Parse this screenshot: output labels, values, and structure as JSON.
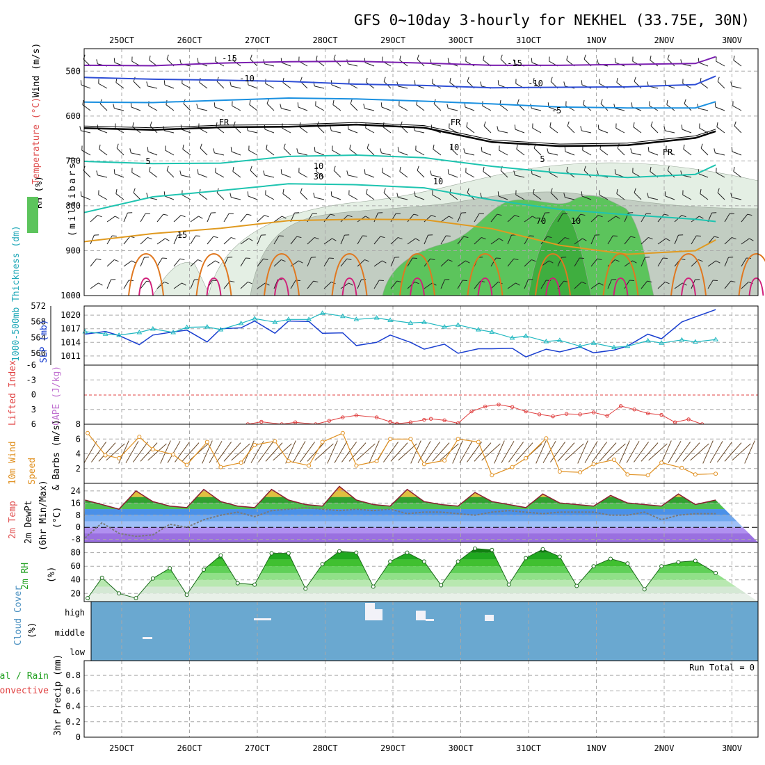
{
  "title": "GFS 0~10day 3-hourly for NEKHEL (33.75E, 30N)",
  "colors": {
    "temp_cold": "#7b1fb0",
    "temp_mid": "#2f4fd6",
    "temp_cool": "#1a90e0",
    "temp_fr": "#000000",
    "temp_warm": "#1ec4b0",
    "temp_hot": "#e09a20",
    "rh_light": "#e4efe4",
    "rh_mid": "#c2cdc2",
    "rh_green": "#5cc45c",
    "slp": "#1a3fd0",
    "thickness": "#20b8c0",
    "lifted": "#e04040",
    "wind10m": "#e09020",
    "dewpt": "#7a7a7a",
    "cloud": "#6aa8d0"
  },
  "chart_data": [
    {
      "type": "heatmap",
      "panel": "upper-air",
      "ylabel_parts": [
        "Wind (m/s)",
        "Temperature (°C)",
        "RH (%)"
      ],
      "ylabel_unit": "(millibars)",
      "y_ticks": [
        "500",
        "600",
        "700",
        "800",
        "900",
        "1000"
      ],
      "ylim": [
        450,
        1000
      ],
      "x_ticks_top": [
        "25OCT",
        "26OCT",
        "27OCT",
        "28OCT",
        "29OCT",
        "30OCT",
        "31OCT",
        "1NOV",
        "2NOV",
        "3NOV"
      ],
      "contour_labels": [
        "-15",
        "-15",
        "-10",
        "-10",
        "-5",
        "FR",
        "FR",
        "FR",
        "5",
        "5",
        "10",
        "15",
        "10",
        "30",
        "10",
        "70",
        "10"
      ],
      "series": [
        {
          "name": "-15",
          "x": [
            0,
            1,
            2,
            3,
            4,
            5,
            6,
            7,
            8,
            9,
            9.3
          ],
          "values": [
            487,
            488,
            482,
            479,
            478,
            482,
            487,
            487,
            485,
            483,
            468
          ]
        },
        {
          "name": "-10",
          "x": [
            0,
            1,
            2,
            3,
            4,
            5,
            6,
            7,
            8,
            9,
            9.3
          ],
          "values": [
            514,
            518,
            520,
            523,
            529,
            532,
            537,
            536,
            535,
            530,
            511
          ]
        },
        {
          "name": "-5",
          "x": [
            0,
            1,
            2,
            3,
            4,
            5,
            6,
            7,
            8,
            9,
            9.3
          ],
          "values": [
            569,
            570,
            565,
            560,
            562,
            567,
            573,
            580,
            582,
            582,
            568
          ]
        },
        {
          "name": "FR",
          "x": [
            0,
            1,
            2,
            3,
            4,
            5,
            6,
            7,
            8,
            9,
            9.3
          ],
          "values": [
            627,
            631,
            625,
            624,
            619,
            626,
            658,
            667,
            665,
            649,
            634
          ]
        },
        {
          "name": "5",
          "x": [
            0,
            1,
            2,
            3,
            4,
            5,
            6,
            7,
            8,
            9,
            9.3
          ],
          "values": [
            701,
            706,
            705,
            690,
            687,
            693,
            712,
            727,
            737,
            730,
            709
          ]
        },
        {
          "name": "10",
          "x": [
            0,
            1,
            2,
            3,
            4,
            5,
            6,
            7,
            8,
            9,
            9.3
          ],
          "values": [
            815,
            780,
            766,
            751,
            753,
            760,
            787,
            808,
            820,
            830,
            835
          ]
        },
        {
          "name": "15",
          "x": [
            0,
            1,
            2,
            3,
            4,
            5,
            6,
            7,
            8,
            9,
            9.3
          ],
          "values": [
            880,
            862,
            850,
            833,
            830,
            831,
            851,
            888,
            908,
            900,
            876
          ]
        }
      ]
    },
    {
      "type": "line",
      "panel": "thickness-slp",
      "ylabel_left": "1000-500mb Thickness (dm)",
      "ylabel_right": "SLP (mb)",
      "y_ticks_left": [
        "572",
        "568",
        "564",
        "560"
      ],
      "y_ticks_right": [
        "1020",
        "1017",
        "1014",
        "1011"
      ],
      "ylim_left": [
        557,
        572
      ],
      "ylim_right": [
        1009,
        1022
      ],
      "series": [
        {
          "name": "SLP (mb)",
          "x": [
            0,
            0.3,
            0.5,
            0.8,
            1.0,
            1.3,
            1.5,
            1.8,
            2.0,
            2.3,
            2.5,
            2.8,
            3.0,
            3.3,
            3.5,
            3.8,
            4.0,
            4.3,
            4.5,
            4.8,
            5.0,
            5.3,
            5.5,
            5.8,
            6.0,
            6.3,
            6.5,
            6.8,
            7.0,
            7.3,
            7.5,
            7.8,
            8.0,
            8.3,
            8.5,
            8.8,
            9.0,
            9.3
          ],
          "values": [
            1015.8,
            1016.4,
            1015.5,
            1013.5,
            1015.6,
            1016.3,
            1016.7,
            1014.1,
            1017.0,
            1017.2,
            1018.7,
            1016.0,
            1018.7,
            1018.6,
            1016.0,
            1016.1,
            1013.3,
            1014.0,
            1015.6,
            1014.0,
            1012.5,
            1013.6,
            1011.6,
            1012.6,
            1012.6,
            1012.7,
            1010.8,
            1012.5,
            1011.9,
            1013.0,
            1011.7,
            1012.3,
            1013.2,
            1015.8,
            1014.8,
            1018.5,
            1019.6,
            1021.2
          ]
        },
        {
          "name": "1000-500mb Thickness (dm)",
          "x": [
            0,
            0.3,
            0.5,
            0.8,
            1.0,
            1.3,
            1.5,
            1.8,
            2.0,
            2.3,
            2.5,
            2.8,
            3.0,
            3.3,
            3.5,
            3.8,
            4.0,
            4.3,
            4.5,
            4.8,
            5.0,
            5.3,
            5.5,
            5.8,
            6.0,
            6.3,
            6.5,
            6.8,
            7.0,
            7.3,
            7.5,
            7.8,
            8.0,
            8.3,
            8.5,
            8.8,
            9.0,
            9.3
          ],
          "values": [
            565.5,
            564.9,
            564.6,
            565.3,
            566.2,
            565.3,
            566.6,
            566.7,
            566.0,
            567.6,
            568.8,
            567.9,
            568.6,
            568.6,
            570.2,
            569.4,
            568.6,
            569.0,
            568.4,
            567.7,
            567.9,
            566.7,
            567.2,
            566.0,
            565.4,
            563.9,
            564.4,
            563.0,
            563.3,
            561.8,
            562.6,
            561.5,
            561.8,
            563.2,
            562.6,
            563.4,
            562.9,
            563.5
          ]
        }
      ]
    },
    {
      "type": "line",
      "panel": "cape-lifted",
      "ylabel_left": "Lifted Index",
      "ylabel_right": "CAPE (J/kg)",
      "y_ticks": [
        "-6",
        "-3",
        "0",
        "3",
        "6"
      ],
      "ylim": [
        -6,
        6
      ],
      "series": [
        {
          "name": "Lifted Index",
          "x": [
            2.4,
            2.6,
            2.9,
            3.1,
            3.4,
            3.6,
            3.8,
            4.0,
            4.3,
            4.5,
            4.6,
            4.8,
            5.0,
            5.1,
            5.3,
            5.5,
            5.7,
            5.9,
            6.1,
            6.3,
            6.5,
            6.7,
            6.9,
            7.1,
            7.3,
            7.5,
            7.7,
            7.9,
            8.1,
            8.3,
            8.5,
            8.7,
            8.9,
            9.1
          ],
          "values": [
            6,
            5.5,
            6,
            5.6,
            6,
            5.3,
            4.6,
            4.2,
            4.6,
            5.5,
            5.9,
            5.6,
            5.1,
            4.9,
            5.2,
            5.8,
            3.4,
            2.4,
            2.0,
            2.5,
            3.4,
            4.0,
            4.4,
            3.9,
            4.0,
            3.6,
            4.3,
            2.3,
            3.0,
            3.8,
            4.1,
            5.6,
            5.0,
            6
          ]
        }
      ]
    },
    {
      "type": "line",
      "panel": "wind10m",
      "ylabel": "10m Wind Speed & Barbs (m/s)",
      "y_ticks": [
        "2",
        "4",
        "6",
        "8"
      ],
      "ylim": [
        0,
        8
      ],
      "series": [
        {
          "name": "10m Wind Speed",
          "x": [
            0,
            0.3,
            0.5,
            0.8,
            1.0,
            1.3,
            1.5,
            1.8,
            2.0,
            2.3,
            2.5,
            2.8,
            3.0,
            3.3,
            3.5,
            3.8,
            4.0,
            4.3,
            4.5,
            4.8,
            5.0,
            5.3,
            5.5,
            5.8,
            6.0,
            6.3,
            6.5,
            6.8,
            7.0,
            7.3,
            7.5,
            7.8,
            8.0,
            8.3,
            8.5,
            8.8,
            9.0,
            9.3
          ],
          "values": [
            6.8,
            3.8,
            3.4,
            6.3,
            4.6,
            3.9,
            2.5,
            5.6,
            2.2,
            2.8,
            5.2,
            5.7,
            3.0,
            2.4,
            5.6,
            6.8,
            2.4,
            3.0,
            6.0,
            6.0,
            2.6,
            3.1,
            6.0,
            5.6,
            1.1,
            2.2,
            3.4,
            6.1,
            1.6,
            1.5,
            2.6,
            3.2,
            1.2,
            1.1,
            2.8,
            2.1,
            1.2,
            1.3
          ]
        }
      ]
    },
    {
      "type": "area",
      "panel": "temp2m",
      "ylabel": "2m Temp 2m DewPt (6hr Min/Max) (°C)",
      "y_ticks": [
        "24",
        "16",
        "8",
        "0",
        "-8"
      ],
      "ylim": [
        -10,
        29
      ],
      "series": [
        {
          "name": "2m Temp",
          "x": [
            0,
            0.25,
            0.5,
            0.75,
            1,
            1.25,
            1.5,
            1.75,
            2,
            2.25,
            2.5,
            2.75,
            3,
            3.25,
            3.5,
            3.75,
            4,
            4.25,
            4.5,
            4.75,
            5,
            5.25,
            5.5,
            5.75,
            6,
            6.25,
            6.5,
            6.75,
            7,
            7.25,
            7.5,
            7.75,
            8,
            8.25,
            8.5,
            8.75,
            9,
            9.3
          ],
          "values": [
            18,
            15,
            12,
            24,
            17,
            14,
            13,
            25,
            17,
            14,
            13,
            25,
            18,
            15,
            14,
            27,
            18,
            15,
            14,
            25,
            17,
            15,
            14,
            23,
            17,
            15,
            13,
            22,
            16,
            15,
            14,
            21,
            16,
            15,
            14,
            22,
            15,
            18
          ]
        },
        {
          "name": "2m DewPt",
          "x": [
            0,
            0.25,
            0.5,
            0.75,
            1,
            1.25,
            1.5,
            1.75,
            2,
            2.25,
            2.5,
            2.75,
            3,
            3.25,
            3.5,
            3.75,
            4,
            4.25,
            4.5,
            4.75,
            5,
            5.25,
            5.5,
            5.75,
            6,
            6.25,
            6.5,
            6.75,
            7,
            7.25,
            7.5,
            7.75,
            8,
            8.25,
            8.5,
            8.75,
            9,
            9.3
          ],
          "values": [
            -7,
            3,
            -4,
            -6,
            -5,
            2,
            0,
            5,
            8,
            10,
            7,
            11,
            12,
            13,
            12,
            11,
            12,
            11,
            12,
            9,
            10,
            10,
            9,
            8,
            10,
            11,
            10,
            9,
            10,
            10,
            10,
            8,
            8,
            10,
            5,
            8,
            9,
            9
          ]
        }
      ]
    },
    {
      "type": "area",
      "panel": "rh2m",
      "ylabel": "2m RH (%)",
      "y_ticks": [
        "80",
        "60",
        "40",
        "20"
      ],
      "ylim": [
        8,
        95
      ],
      "series": [
        {
          "name": "2m RH",
          "x": [
            0,
            0.25,
            0.5,
            0.75,
            1,
            1.25,
            1.5,
            1.75,
            2,
            2.25,
            2.5,
            2.75,
            3,
            3.25,
            3.5,
            3.75,
            4,
            4.25,
            4.5,
            4.75,
            5,
            5.25,
            5.5,
            5.75,
            6,
            6.25,
            6.5,
            6.75,
            7,
            7.25,
            7.5,
            7.75,
            8,
            8.25,
            8.5,
            8.75,
            9,
            9.3
          ],
          "values": [
            13,
            43,
            20,
            13,
            42,
            57,
            18,
            55,
            76,
            35,
            33,
            79,
            79,
            27,
            63,
            82,
            80,
            30,
            67,
            80,
            67,
            32,
            67,
            86,
            84,
            33,
            72,
            85,
            74,
            31,
            60,
            71,
            64,
            26,
            60,
            66,
            68,
            50
          ]
        }
      ]
    },
    {
      "type": "area",
      "panel": "cloud",
      "ylabel": "Cloud Cover (%)",
      "y_ticks": [
        "high",
        "middle",
        "low"
      ]
    },
    {
      "type": "bar",
      "panel": "precip",
      "ylabel_parts": [
        "Total / Rain",
        "Convective"
      ],
      "ylabel": "3hr Precip (mm)",
      "y_ticks": [
        "0.8",
        "0.6",
        "0.4",
        "0.2",
        "0"
      ],
      "ylim": [
        0,
        0.9
      ],
      "run_total": "Run Total = 0",
      "x_ticks_bottom": [
        "25OCT",
        "26OCT",
        "27OCT",
        "28OCT",
        "29OCT",
        "30OCT",
        "31OCT",
        "1NOV",
        "2NOV",
        "3NOV"
      ],
      "values": []
    }
  ]
}
